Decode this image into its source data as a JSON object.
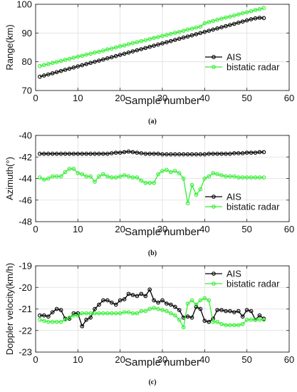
{
  "chart_data": [
    {
      "type": "line",
      "caption": "(a)",
      "xlabel": "Sample number",
      "ylabel": "Range(km)",
      "xlim": [
        0,
        60
      ],
      "ylim": [
        70,
        100
      ],
      "xticks": [
        0,
        10,
        20,
        30,
        40,
        50,
        60
      ],
      "yticks": [
        70,
        80,
        90,
        100
      ],
      "grid": true,
      "legend": "right",
      "series": [
        {
          "name": "AIS",
          "color": "#000000",
          "x": [
            1,
            2,
            3,
            4,
            5,
            6,
            7,
            8,
            9,
            10,
            11,
            12,
            13,
            14,
            15,
            16,
            17,
            18,
            19,
            20,
            21,
            22,
            23,
            24,
            25,
            26,
            27,
            28,
            29,
            30,
            31,
            32,
            33,
            34,
            35,
            36,
            37,
            38,
            39,
            40,
            41,
            42,
            43,
            44,
            45,
            46,
            47,
            48,
            49,
            50,
            51,
            52,
            53,
            54
          ],
          "y": [
            74.8,
            75.2,
            75.6,
            76.0,
            76.4,
            76.8,
            77.2,
            77.6,
            78.0,
            78.4,
            78.8,
            79.2,
            79.6,
            80.0,
            80.4,
            80.8,
            81.2,
            81.6,
            82.0,
            82.4,
            82.8,
            83.2,
            83.6,
            84.0,
            84.4,
            84.8,
            85.2,
            85.6,
            86.0,
            86.4,
            86.8,
            87.2,
            87.6,
            88.0,
            88.4,
            88.8,
            89.2,
            89.6,
            90.0,
            90.4,
            90.8,
            91.2,
            91.6,
            92.0,
            92.4,
            92.8,
            93.2,
            93.6,
            94.0,
            94.4,
            94.8,
            95.1,
            95.3,
            95.2
          ]
        },
        {
          "name": "bistatic radar",
          "color": "#33ee33",
          "x": [
            1,
            2,
            3,
            4,
            5,
            6,
            7,
            8,
            9,
            10,
            11,
            12,
            13,
            14,
            15,
            16,
            17,
            18,
            19,
            20,
            21,
            22,
            23,
            24,
            25,
            26,
            27,
            28,
            29,
            30,
            31,
            32,
            33,
            34,
            35,
            36,
            37,
            38,
            39,
            40,
            41,
            42,
            43,
            44,
            45,
            46,
            47,
            48,
            49,
            50,
            51,
            52,
            53,
            54
          ],
          "y": [
            78.5,
            78.9,
            79.2,
            79.6,
            79.9,
            80.3,
            80.7,
            81.0,
            81.4,
            81.8,
            82.1,
            82.5,
            82.8,
            83.2,
            83.5,
            83.9,
            84.3,
            84.6,
            85.0,
            85.4,
            85.7,
            86.1,
            86.5,
            86.8,
            87.2,
            87.5,
            87.9,
            88.3,
            88.6,
            89.0,
            89.3,
            89.7,
            90.1,
            90.4,
            90.8,
            91.2,
            91.5,
            91.9,
            92.2,
            93.4,
            93.8,
            94.2,
            94.6,
            95.0,
            95.4,
            95.7,
            96.1,
            96.5,
            96.9,
            97.2,
            97.6,
            98.0,
            98.3,
            98.7
          ]
        }
      ]
    },
    {
      "type": "line",
      "caption": "(b)",
      "xlabel": "Sample number",
      "ylabel": "Azimuth(°)",
      "xlim": [
        0,
        60
      ],
      "ylim": [
        -48,
        -40
      ],
      "xticks": [
        0,
        10,
        20,
        30,
        40,
        50,
        60
      ],
      "yticks": [
        -40,
        -42,
        -44,
        -46,
        -48
      ],
      "grid": true,
      "legend": "bottom-right",
      "series": [
        {
          "name": "AIS",
          "color": "#000000",
          "x": [
            1,
            2,
            3,
            4,
            5,
            6,
            7,
            8,
            9,
            10,
            11,
            12,
            13,
            14,
            15,
            16,
            17,
            18,
            19,
            20,
            21,
            22,
            23,
            24,
            25,
            26,
            27,
            28,
            29,
            30,
            31,
            32,
            33,
            34,
            35,
            36,
            37,
            38,
            39,
            40,
            41,
            42,
            43,
            44,
            45,
            46,
            47,
            48,
            49,
            50,
            51,
            52,
            53,
            54
          ],
          "y": [
            -41.7,
            -41.7,
            -41.7,
            -41.7,
            -41.7,
            -41.7,
            -41.7,
            -41.7,
            -41.7,
            -41.7,
            -41.7,
            -41.7,
            -41.7,
            -41.7,
            -41.7,
            -41.7,
            -41.7,
            -41.65,
            -41.6,
            -41.6,
            -41.55,
            -41.5,
            -41.55,
            -41.6,
            -41.65,
            -41.7,
            -41.7,
            -41.7,
            -41.7,
            -41.75,
            -41.75,
            -41.75,
            -41.75,
            -41.75,
            -41.75,
            -41.75,
            -41.75,
            -41.75,
            -41.75,
            -41.75,
            -41.7,
            -41.7,
            -41.7,
            -41.7,
            -41.7,
            -41.7,
            -41.65,
            -41.65,
            -41.65,
            -41.6,
            -41.6,
            -41.6,
            -41.55,
            -41.55
          ]
        },
        {
          "name": "bistatic radar",
          "color": "#33ee33",
          "x": [
            1,
            2,
            3,
            4,
            5,
            6,
            7,
            8,
            9,
            10,
            11,
            12,
            13,
            14,
            15,
            16,
            17,
            18,
            19,
            20,
            21,
            22,
            23,
            24,
            25,
            26,
            27,
            28,
            29,
            30,
            31,
            32,
            33,
            34,
            35,
            36,
            37,
            38,
            39,
            40,
            41,
            42,
            43,
            44,
            45,
            46,
            47,
            48,
            49,
            50,
            51,
            52,
            53,
            54
          ],
          "y": [
            -43.9,
            -44.1,
            -44.0,
            -43.8,
            -43.8,
            -43.8,
            -43.4,
            -43.1,
            -43.1,
            -43.5,
            -43.6,
            -43.8,
            -43.8,
            -44.3,
            -43.8,
            -43.6,
            -43.8,
            -43.9,
            -43.9,
            -43.8,
            -43.7,
            -43.8,
            -43.9,
            -43.9,
            -44.2,
            -44.4,
            -44.4,
            -44.4,
            -43.6,
            -43.3,
            -43.2,
            -43.4,
            -43.3,
            -43.5,
            -44.0,
            -46.3,
            -44.6,
            -45.5,
            -45.0,
            -44.0,
            -43.8,
            -43.5,
            -43.6,
            -43.7,
            -43.8,
            -43.8,
            -43.8,
            -43.9,
            -43.9,
            -43.9,
            -43.9,
            -43.9,
            -43.9,
            -43.9
          ]
        }
      ]
    },
    {
      "type": "line",
      "caption": "(c)",
      "xlabel": "Sample number",
      "ylabel": "Doppler velocity(km/h)",
      "xlim": [
        0,
        60
      ],
      "ylim": [
        -23,
        -19
      ],
      "xticks": [
        0,
        10,
        20,
        30,
        40,
        50,
        60
      ],
      "yticks": [
        -19,
        -20,
        -21,
        -22,
        -23
      ],
      "grid": true,
      "legend": "top-right",
      "series": [
        {
          "name": "AIS",
          "color": "#000000",
          "x": [
            1,
            2,
            3,
            4,
            5,
            6,
            7,
            8,
            9,
            10,
            11,
            12,
            13,
            14,
            15,
            16,
            17,
            18,
            19,
            20,
            21,
            22,
            23,
            24,
            25,
            26,
            27,
            28,
            29,
            30,
            31,
            32,
            33,
            34,
            35,
            36,
            37,
            38,
            39,
            40,
            41,
            42,
            43,
            44,
            45,
            46,
            47,
            48,
            49,
            50,
            51,
            52,
            53,
            54
          ],
          "y": [
            -21.3,
            -21.3,
            -21.35,
            -21.15,
            -21.0,
            -21.05,
            -21.45,
            -21.45,
            -21.2,
            -21.2,
            -21.8,
            -21.5,
            -21.4,
            -21.0,
            -20.8,
            -20.6,
            -20.6,
            -20.7,
            -20.8,
            -20.6,
            -20.55,
            -20.3,
            -20.35,
            -20.4,
            -20.3,
            -20.4,
            -20.1,
            -20.6,
            -20.7,
            -20.6,
            -20.75,
            -20.8,
            -20.9,
            -21.05,
            -21.4,
            -21.35,
            -21.4,
            -20.9,
            -21.0,
            -21.55,
            -21.6,
            -21.45,
            -21.05,
            -21.05,
            -21.1,
            -21.1,
            -21.15,
            -21.1,
            -21.35,
            -21.05,
            -21.1,
            -21.5,
            -21.3,
            -21.45
          ]
        },
        {
          "name": "bistatic radar",
          "color": "#33ee33",
          "x": [
            1,
            2,
            3,
            4,
            5,
            6,
            7,
            8,
            9,
            10,
            11,
            12,
            13,
            14,
            15,
            16,
            17,
            18,
            19,
            20,
            21,
            22,
            23,
            24,
            25,
            26,
            27,
            28,
            29,
            30,
            31,
            32,
            33,
            34,
            35,
            36,
            37,
            38,
            39,
            40,
            41,
            42,
            43,
            44,
            45,
            46,
            47,
            48,
            49,
            50,
            51,
            52,
            53,
            54
          ],
          "y": [
            -21.5,
            -21.55,
            -21.6,
            -21.6,
            -21.6,
            -21.6,
            -21.5,
            -21.4,
            -21.3,
            -21.3,
            -21.2,
            -21.2,
            -21.2,
            -21.2,
            -21.2,
            -21.2,
            -21.2,
            -21.2,
            -21.2,
            -21.2,
            -21.15,
            -21.15,
            -21.2,
            -21.2,
            -21.1,
            -21.1,
            -21.0,
            -20.95,
            -21.0,
            -21.05,
            -21.1,
            -21.2,
            -21.3,
            -21.5,
            -21.85,
            -20.75,
            -20.6,
            -20.8,
            -20.6,
            -20.5,
            -20.6,
            -21.6,
            -21.6,
            -21.7,
            -21.75,
            -21.75,
            -21.75,
            -21.75,
            -21.7,
            -21.5,
            -21.5,
            -21.5,
            -21.5,
            -21.5
          ]
        }
      ]
    }
  ]
}
